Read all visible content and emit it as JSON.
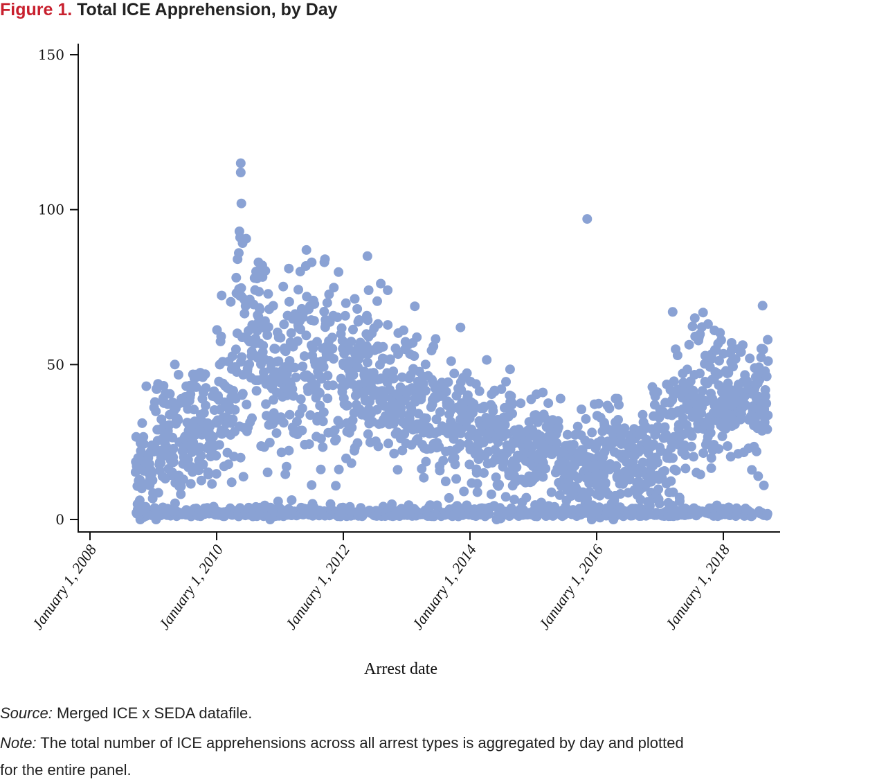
{
  "figure": {
    "label": "Figure 1.",
    "title": "Total ICE Apprehension, by Day"
  },
  "caption": {
    "source_label": "Source:",
    "source_text": " Merged ICE x SEDA datafile.",
    "note_label": "Note:",
    "note_text_line1": " The total number of ICE apprehensions across all arrest types is aggregated by day and plotted",
    "note_text_line2": "for the entire panel."
  },
  "chart_data": {
    "type": "scatter",
    "title": "Total ICE Apprehension, by Day",
    "xlabel": "Arrest date",
    "ylabel": "",
    "xlim": [
      2007.82,
      2019.05
    ],
    "ylim": [
      -4,
      154
    ],
    "yticks": [
      0,
      50,
      100,
      150
    ],
    "ytick_labels": [
      "0",
      "50",
      "100",
      "150"
    ],
    "xticks": [
      2008,
      2010,
      2012,
      2014,
      2016,
      2018
    ],
    "xtick_labels": [
      "January 1, 2008",
      "January 1, 2010",
      "January 1, 2012",
      "January 1, 2014",
      "January 1, 2016",
      "January 1, 2018"
    ],
    "grid": false,
    "legend": "none",
    "marker_color": "#8aa2d4",
    "x_units": "decimal year",
    "y_units": "apprehensions per day",
    "data_range": {
      "x": [
        2008.72,
        2018.71
      ],
      "y": [
        0,
        115
      ]
    },
    "note": "Dense daily series (~3,600 points). Outliers below are read directly off the axes; bulk points are summarized by period and expanded deterministically.",
    "outliers": [
      {
        "x": 2010.38,
        "y": 115
      },
      {
        "x": 2010.38,
        "y": 112
      },
      {
        "x": 2010.39,
        "y": 102
      },
      {
        "x": 2010.36,
        "y": 93
      },
      {
        "x": 2010.37,
        "y": 91
      },
      {
        "x": 2010.35,
        "y": 86
      },
      {
        "x": 2010.33,
        "y": 84
      },
      {
        "x": 2010.66,
        "y": 83
      },
      {
        "x": 2010.72,
        "y": 82
      },
      {
        "x": 2011.14,
        "y": 81
      },
      {
        "x": 2011.32,
        "y": 80
      },
      {
        "x": 2011.5,
        "y": 83
      },
      {
        "x": 2011.71,
        "y": 84
      },
      {
        "x": 2011.7,
        "y": 83
      },
      {
        "x": 2012.38,
        "y": 85
      },
      {
        "x": 2012.4,
        "y": 74
      },
      {
        "x": 2012.7,
        "y": 74
      },
      {
        "x": 2013.85,
        "y": 62
      },
      {
        "x": 2015.85,
        "y": 97
      },
      {
        "x": 2017.2,
        "y": 67
      },
      {
        "x": 2018.62,
        "y": 69
      },
      {
        "x": 2008.89,
        "y": 43
      },
      {
        "x": 2009.34,
        "y": 50
      },
      {
        "x": 2009.52,
        "y": 43
      },
      {
        "x": 2015.15,
        "y": 41
      },
      {
        "x": 2015.43,
        "y": 39
      },
      {
        "x": 2016.3,
        "y": 39
      },
      {
        "x": 2016.35,
        "y": 37
      },
      {
        "x": 2017.55,
        "y": 65
      },
      {
        "x": 2017.86,
        "y": 61
      },
      {
        "x": 2018.13,
        "y": 57
      },
      {
        "x": 2018.7,
        "y": 58
      },
      {
        "x": 2014.95,
        "y": 12
      },
      {
        "x": 2016.0,
        "y": 11
      },
      {
        "x": 2018.45,
        "y": 16
      },
      {
        "x": 2018.55,
        "y": 14
      },
      {
        "x": 2018.64,
        "y": 11
      }
    ],
    "period_summary": [
      {
        "from": 2008.72,
        "to": 2009.0,
        "median": 18,
        "p10": 8,
        "p90": 28,
        "share_near_zero": 0.35
      },
      {
        "from": 2009.0,
        "to": 2009.5,
        "median": 25,
        "p10": 12,
        "p90": 36,
        "share_near_zero": 0.3
      },
      {
        "from": 2009.5,
        "to": 2010.0,
        "median": 30,
        "p10": 15,
        "p90": 42,
        "share_near_zero": 0.28
      },
      {
        "from": 2010.0,
        "to": 2010.3,
        "median": 38,
        "p10": 20,
        "p90": 52,
        "share_near_zero": 0.25
      },
      {
        "from": 2010.3,
        "to": 2010.8,
        "median": 52,
        "p10": 30,
        "p90": 72,
        "share_near_zero": 0.28
      },
      {
        "from": 2010.8,
        "to": 2011.5,
        "median": 48,
        "p10": 28,
        "p90": 68,
        "share_near_zero": 0.28
      },
      {
        "from": 2011.5,
        "to": 2012.0,
        "median": 50,
        "p10": 30,
        "p90": 68,
        "share_near_zero": 0.28
      },
      {
        "from": 2012.0,
        "to": 2012.6,
        "median": 44,
        "p10": 28,
        "p90": 60,
        "share_near_zero": 0.28
      },
      {
        "from": 2012.6,
        "to": 2013.3,
        "median": 38,
        "p10": 25,
        "p90": 52,
        "share_near_zero": 0.28
      },
      {
        "from": 2013.3,
        "to": 2014.0,
        "median": 34,
        "p10": 20,
        "p90": 48,
        "share_near_zero": 0.28
      },
      {
        "from": 2014.0,
        "to": 2014.7,
        "median": 28,
        "p10": 16,
        "p90": 40,
        "share_near_zero": 0.28
      },
      {
        "from": 2014.7,
        "to": 2015.4,
        "median": 22,
        "p10": 12,
        "p90": 32,
        "share_near_zero": 0.28
      },
      {
        "from": 2015.4,
        "to": 2016.2,
        "median": 18,
        "p10": 8,
        "p90": 28,
        "share_near_zero": 0.28
      },
      {
        "from": 2016.2,
        "to": 2016.9,
        "median": 20,
        "p10": 10,
        "p90": 30,
        "share_near_zero": 0.28
      },
      {
        "from": 2016.9,
        "to": 2017.4,
        "median": 28,
        "p10": 15,
        "p90": 40,
        "share_near_zero": 0.28
      },
      {
        "from": 2017.4,
        "to": 2018.0,
        "median": 38,
        "p10": 25,
        "p90": 52,
        "share_near_zero": 0.28
      },
      {
        "from": 2018.0,
        "to": 2018.71,
        "median": 39,
        "p10": 28,
        "p90": 50,
        "share_near_zero": 0.28
      }
    ]
  }
}
